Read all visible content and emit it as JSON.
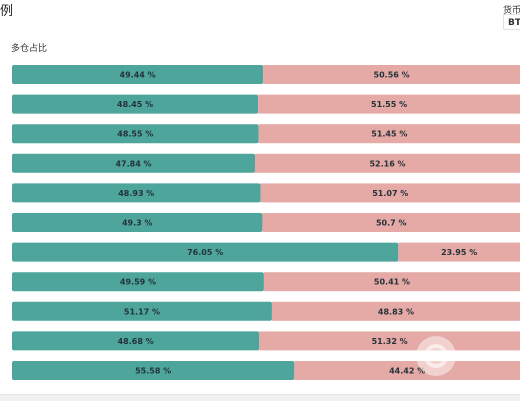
{
  "header": {
    "title_fragment": "例",
    "currency_label": "货币",
    "currency_value": "BTC"
  },
  "subtitle": "多仓占比",
  "colors": {
    "long": "#4da59c",
    "short": "#e5a9a6"
  },
  "chart_data": {
    "type": "bar",
    "orientation": "horizontal",
    "stacked": true,
    "normalized": true,
    "title": "多仓占比",
    "series": [
      {
        "name": "",
        "values": [
          49.44,
          48.45,
          48.55,
          47.84,
          48.93,
          49.3,
          76.05,
          49.59,
          51.17,
          48.68,
          55.58
        ],
        "labels": [
          "49.44 %",
          "48.45 %",
          "48.55 %",
          "47.84 %",
          "48.93 %",
          "49.3 %",
          "76.05 %",
          "49.59 %",
          "51.17 %",
          "48.68 %",
          "55.58 %"
        ]
      },
      {
        "name": "",
        "values": [
          50.56,
          51.55,
          51.45,
          52.16,
          51.07,
          50.7,
          23.95,
          50.41,
          48.83,
          51.32,
          44.42
        ],
        "labels": [
          "50.56 %",
          "51.55 %",
          "51.45 %",
          "52.16 %",
          "51.07 %",
          "50.7 %",
          "23.95 %",
          "50.41 %",
          "48.83 %",
          "51.32 %",
          "44.42 %"
        ]
      }
    ],
    "xlim": [
      0,
      100
    ],
    "grid": false,
    "legend": "none"
  }
}
